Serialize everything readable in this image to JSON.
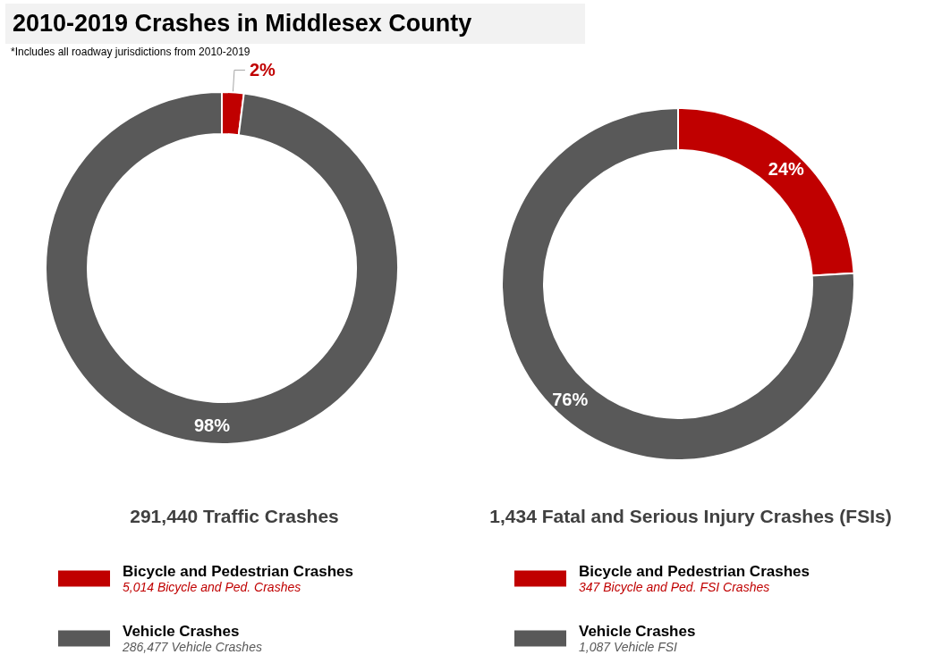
{
  "chart_data": [
    {
      "type": "donut",
      "title": "2010-2019 Crashes in Middlesex County",
      "subtitle": "*Includes all roadway jurisdictions from 2010-2019",
      "xlabel": "291,440 Traffic Crashes",
      "categories": [
        "Bicycle and Pedestrian Crashes",
        "Vehicle Crashes"
      ],
      "values": [
        2,
        98
      ],
      "value_labels": [
        "2%",
        "98%"
      ],
      "colors": [
        "#c00000",
        "#595959"
      ],
      "legend": "bottom",
      "annotations": [
        "5,014 Bicycle and Ped. Crashes",
        "286,477 Vehicle Crashes"
      ]
    },
    {
      "type": "donut",
      "xlabel": "1,434 Fatal and Serious Injury Crashes (FSIs)",
      "categories": [
        "Bicycle and Pedestrian Crashes",
        "Vehicle Crashes"
      ],
      "values": [
        24,
        76
      ],
      "value_labels": [
        "24%",
        "76%"
      ],
      "colors": [
        "#c00000",
        "#595959"
      ],
      "legend": "bottom",
      "annotations": [
        "347 Bicycle and Ped. FSI Crashes",
        "1,087 Vehicle FSI"
      ]
    }
  ]
}
